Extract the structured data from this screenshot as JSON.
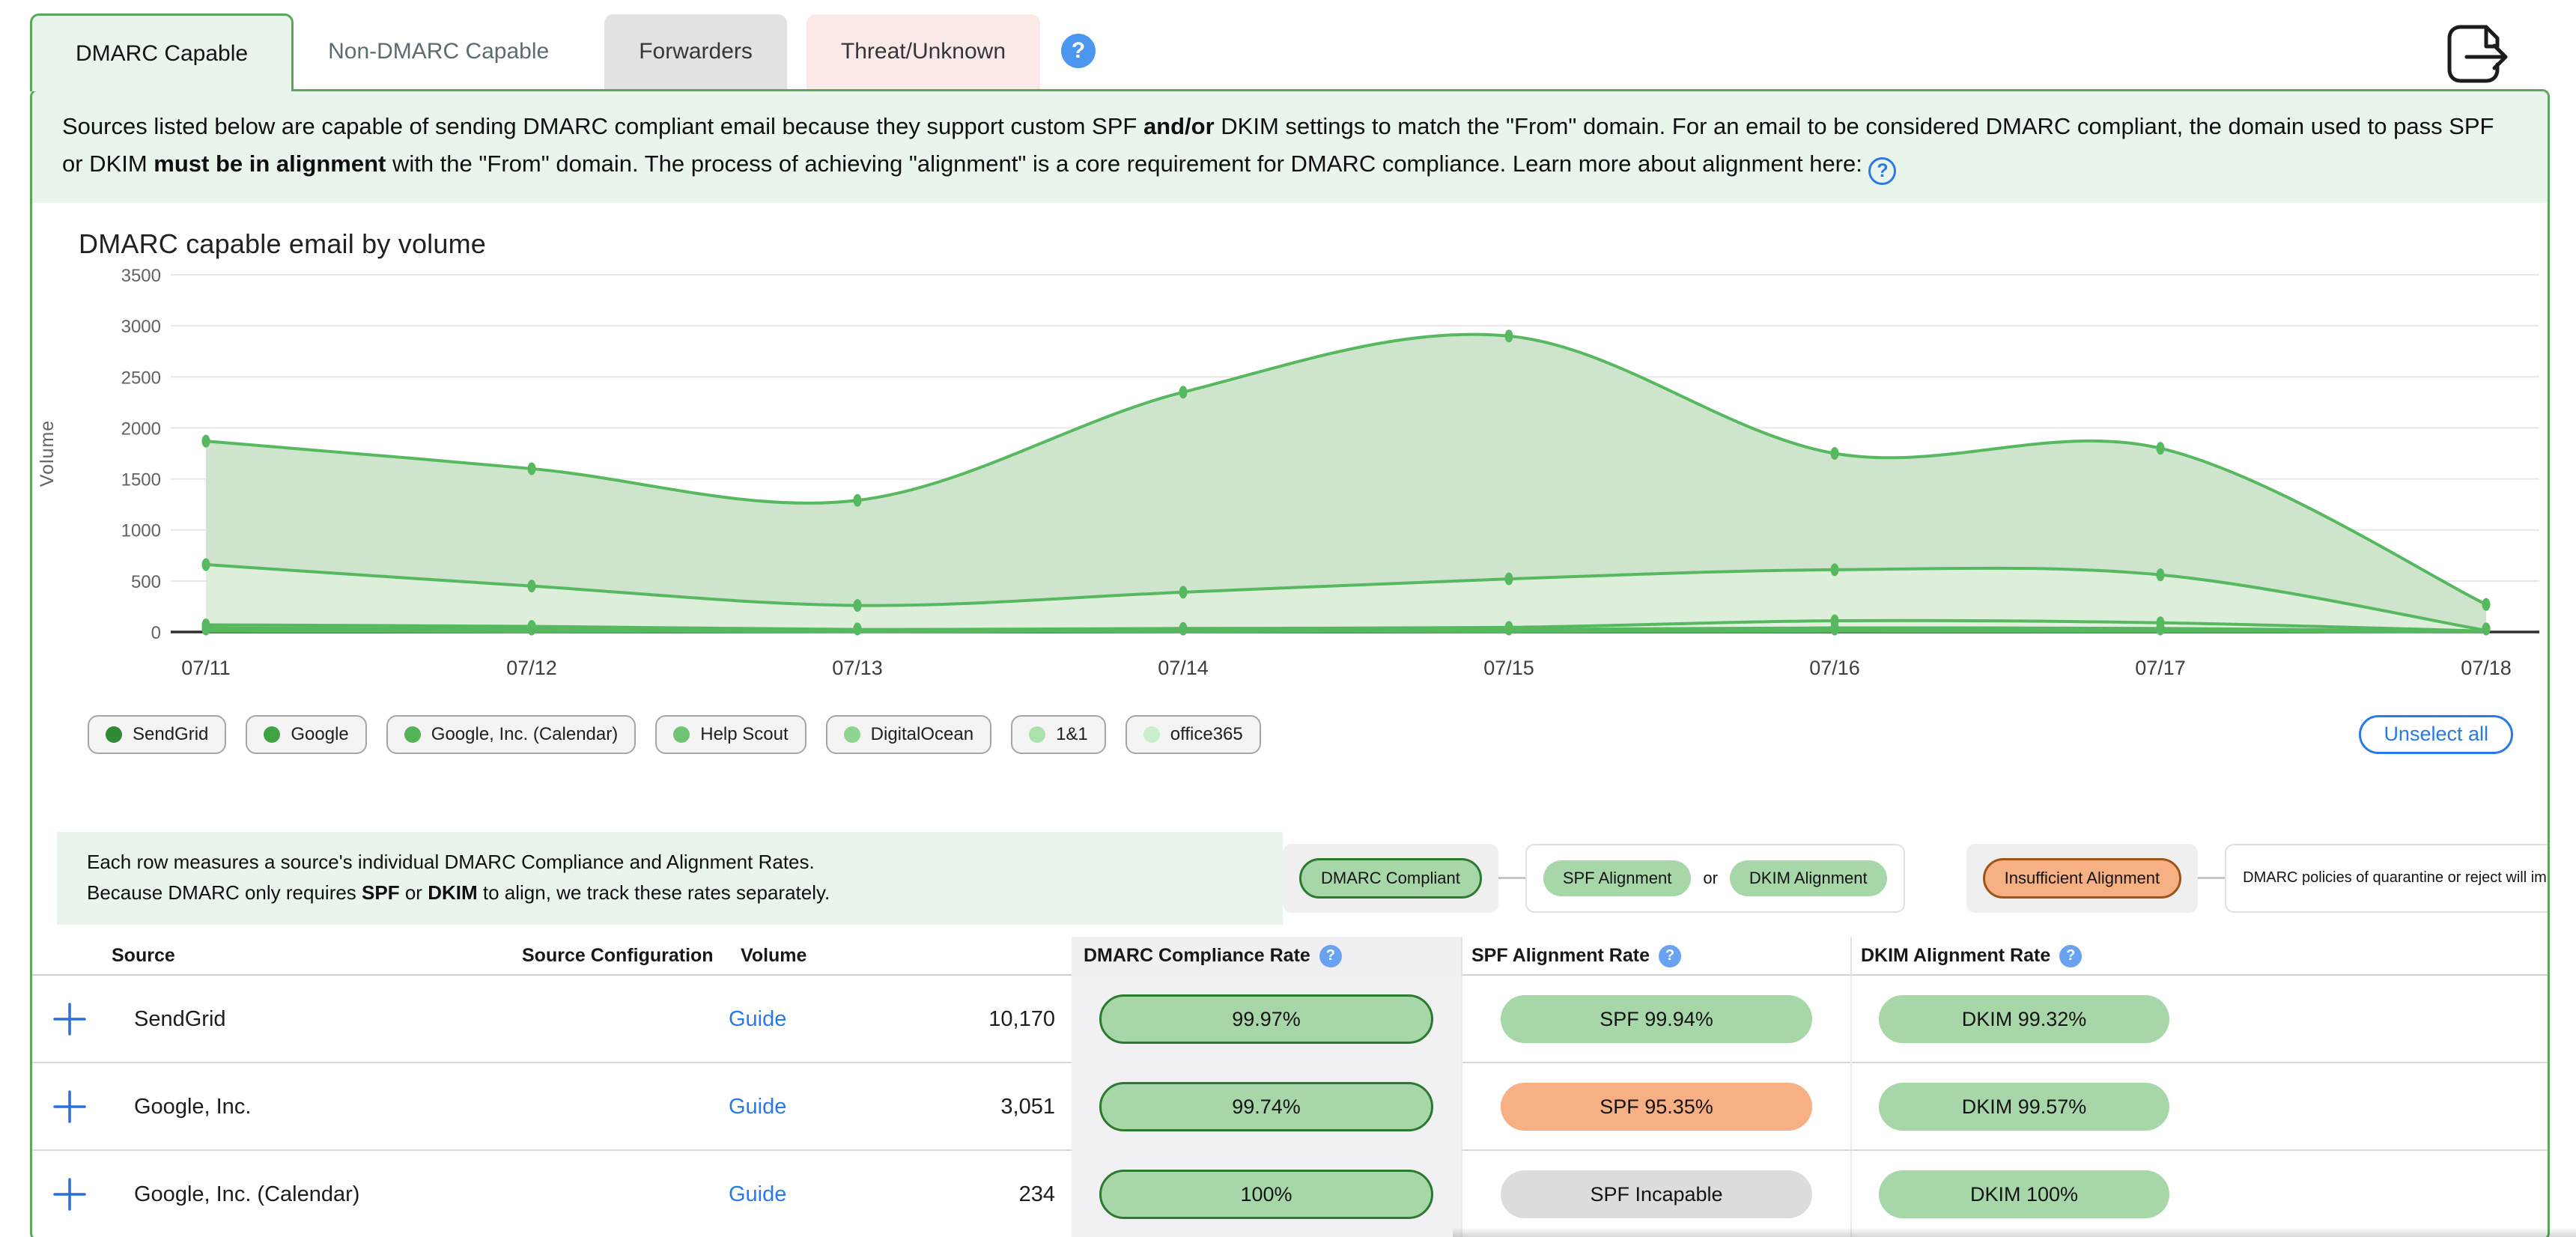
{
  "colors": {
    "accent_green": "#5ba75b",
    "pill_green": "#a7d7a9",
    "pill_green_border": "#2c7a2f",
    "pill_orange": "#f6b084",
    "pill_orange_border": "#9c5518",
    "pill_gray": "#dcdcdc",
    "link_blue": "#2979e8",
    "chart_line": "#57b95f"
  },
  "tabs": [
    {
      "label": "DMARC Capable",
      "state": "active"
    },
    {
      "label": "Non-DMARC Capable",
      "state": "plain"
    },
    {
      "label": "Forwarders",
      "state": "gray"
    },
    {
      "label": "Threat/Unknown",
      "state": "pink"
    }
  ],
  "tab_help_icon": "?",
  "intro": {
    "runs": [
      {
        "t": "Sources listed below are capable of sending DMARC compliant email because they support custom SPF "
      },
      {
        "t": "and/or",
        "b": true
      },
      {
        "t": " DKIM settings to match the \"From\" domain. For an email to be considered DMARC compliant, the domain used to pass SPF or DKIM "
      },
      {
        "t": "must be in alignment",
        "b": true
      },
      {
        "t": " with the \"From\" domain. The process of achieving \"alignment\" is a core requirement for DMARC compliance. Learn more about alignment here: "
      }
    ],
    "trailing_icon": "?"
  },
  "chart_data": {
    "type": "area",
    "title": "DMARC capable email by volume",
    "ylabel": "Volume",
    "xlabel": "",
    "x": [
      "07/11",
      "07/12",
      "07/13",
      "07/14",
      "07/15",
      "07/16",
      "07/17",
      "07/18"
    ],
    "ylim": [
      0,
      3500
    ],
    "yticks": [
      0,
      500,
      1000,
      1500,
      2000,
      2500,
      3000,
      3500
    ],
    "grid": true,
    "legend_position": "bottom",
    "line_color": "#57b95f",
    "series": [
      {
        "name": "SendGrid",
        "dot_color": "#2f8a34",
        "fill": "#cfe4cd",
        "values": [
          1870,
          1600,
          1290,
          2350,
          2900,
          1750,
          1800,
          270
        ]
      },
      {
        "name": "Google",
        "dot_color": "#3fa344",
        "fill": "#ddeedb",
        "values": [
          660,
          450,
          260,
          390,
          520,
          610,
          560,
          15
        ]
      },
      {
        "name": "Google, Inc. (Calendar)",
        "dot_color": "#52b457",
        "fill": "#e2f1df",
        "values": [
          70,
          55,
          25,
          35,
          45,
          110,
          90,
          8
        ]
      },
      {
        "name": "Help Scout",
        "dot_color": "#6fc472",
        "fill": "#e6f3e3",
        "values": [
          40,
          30,
          15,
          20,
          25,
          40,
          35,
          5
        ]
      },
      {
        "name": "DigitalOcean",
        "dot_color": "#8ed690",
        "fill": "#eaf5e8",
        "values": [
          25,
          18,
          10,
          12,
          15,
          25,
          20,
          3
        ]
      },
      {
        "name": "1&1",
        "dot_color": "#abe2ac",
        "fill": "#eef7ec",
        "values": [
          15,
          10,
          6,
          8,
          10,
          15,
          12,
          2
        ]
      },
      {
        "name": "office365",
        "dot_color": "#c9efca",
        "fill": "#f2f9f0",
        "values": [
          8,
          5,
          3,
          4,
          5,
          8,
          6,
          1
        ]
      }
    ]
  },
  "chart_legend": {
    "unselect_all_label": "Unselect all"
  },
  "table_note": {
    "line1": [
      {
        "t": "Each row measures a source's individual DMARC Compliance and Alignment Rates."
      }
    ],
    "line2": [
      {
        "t": "Because DMARC only requires "
      },
      {
        "t": "SPF",
        "b": true
      },
      {
        "t": " or "
      },
      {
        "t": "DKIM",
        "b": true
      },
      {
        "t": " to align, we track these rates separately."
      }
    ]
  },
  "compliance_legend": {
    "dmarc_compliant": "DMARC Compliant",
    "spf_alignment": "SPF Alignment",
    "or_label": "or",
    "dkim_alignment": "DKIM Alignment",
    "insufficient_alignment": "Insufficient Alignment",
    "policy_note": "DMARC policies of quarantine or reject will impact this source"
  },
  "table": {
    "headers": [
      {
        "label": ""
      },
      {
        "label": "Source"
      },
      {
        "label": "Source Configuration"
      },
      {
        "label": "Volume"
      },
      {
        "label": "DMARC Compliance Rate",
        "help": true
      },
      {
        "label": "SPF Alignment Rate",
        "help": true
      },
      {
        "label": "DKIM Alignment Rate",
        "help": true
      }
    ],
    "rows": [
      {
        "source": "SendGrid",
        "guide": "Guide",
        "volume": "10,170",
        "dmarc": "99.97%",
        "spf": {
          "label": "SPF 99.94%",
          "type": "green"
        },
        "dkim": {
          "label": "DKIM 99.32%",
          "type": "green"
        }
      },
      {
        "source": "Google, Inc.",
        "guide": "Guide",
        "volume": "3,051",
        "dmarc": "99.74%",
        "spf": {
          "label": "SPF 95.35%",
          "type": "orange"
        },
        "dkim": {
          "label": "DKIM 99.57%",
          "type": "green"
        }
      },
      {
        "source": "Google, Inc. (Calendar)",
        "guide": "Guide",
        "volume": "234",
        "dmarc": "100%",
        "spf": {
          "label": "SPF Incapable",
          "type": "gray"
        },
        "dkim": {
          "label": "DKIM 100%",
          "type": "green"
        }
      }
    ]
  }
}
